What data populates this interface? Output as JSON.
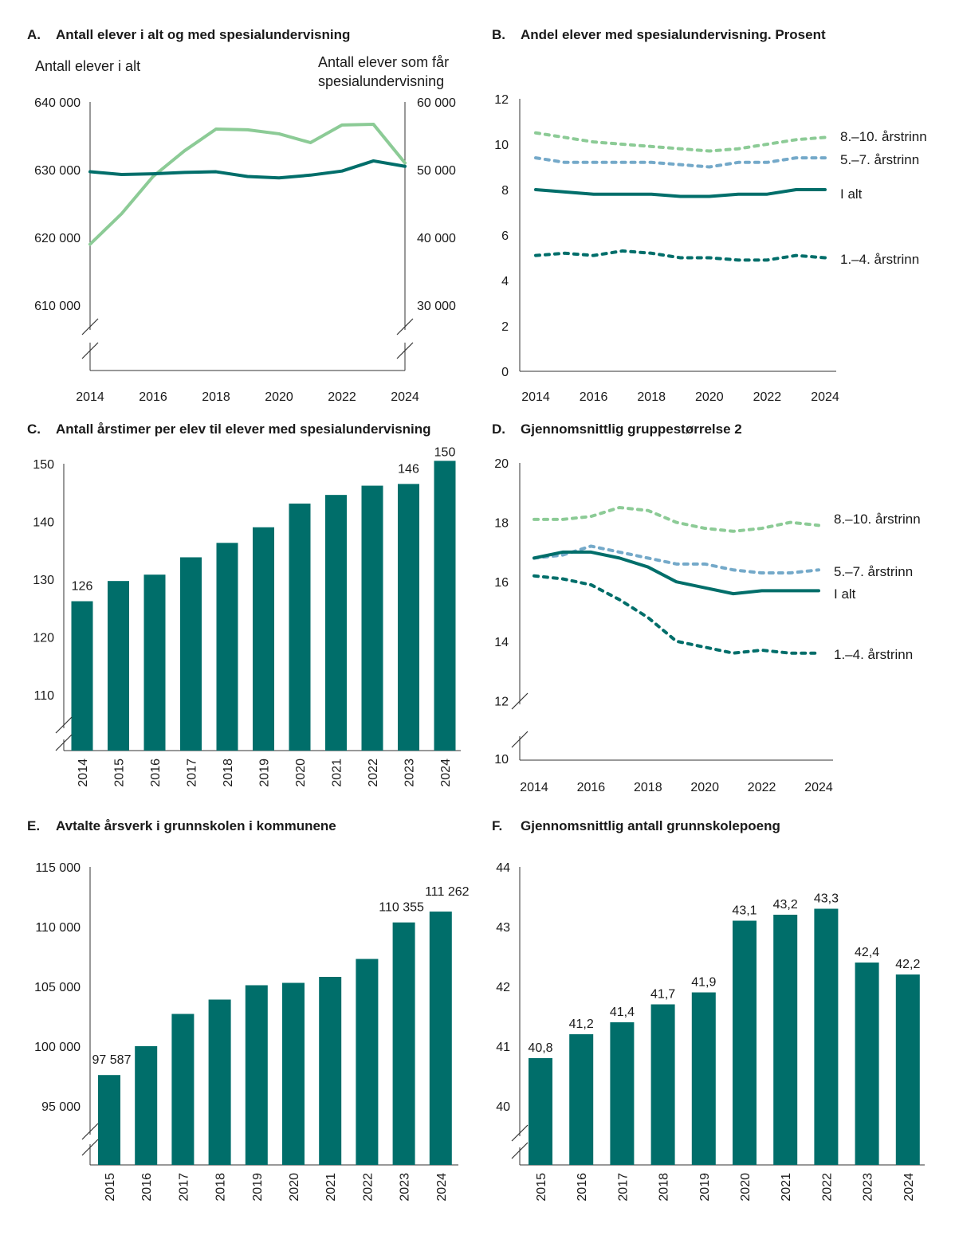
{
  "colors": {
    "dark_teal": "#006e6a",
    "light_green": "#8ccb96",
    "light_blue": "#74a9c9",
    "axis": "#333333"
  },
  "chart_data": [
    {
      "id": "A",
      "type": "line",
      "letter": "A.",
      "title": "Antall elever i alt og med spesialundervisning",
      "x": [
        2014,
        2015,
        2016,
        2017,
        2018,
        2019,
        2020,
        2021,
        2022,
        2023,
        2024
      ],
      "x_ticks": [
        "2014",
        "2016",
        "2018",
        "2020",
        "2022",
        "2024"
      ],
      "y_left_ticks": [
        "610 000",
        "620 000",
        "630 000",
        "640 000"
      ],
      "y_right_ticks": [
        "30 000",
        "40 000",
        "50 000",
        "60 000"
      ],
      "ylim_left": [
        610000,
        640000
      ],
      "ylim_right": [
        30000,
        60000
      ],
      "series": [
        {
          "name": "Antall elever i alt",
          "axis": "left",
          "color": "#8ccb96",
          "label_lines": [
            "Antall elever i alt"
          ],
          "values": [
            619000,
            623500,
            629000,
            632800,
            636000,
            635900,
            635300,
            634000,
            636600,
            636700,
            631000
          ]
        },
        {
          "name": "Antall elever som får spesialundervisning",
          "axis": "right",
          "color": "#006e6a",
          "label_lines": [
            "Antall elever som får",
            "spesialundervisning"
          ],
          "values": [
            49700,
            49300,
            49400,
            49600,
            49700,
            49000,
            48800,
            49200,
            49800,
            51300,
            50500
          ]
        }
      ]
    },
    {
      "id": "B",
      "type": "line",
      "letter": "B.",
      "title": "Andel elever med spesialundervisning. Prosent",
      "x": [
        2014,
        2015,
        2016,
        2017,
        2018,
        2019,
        2020,
        2021,
        2022,
        2023,
        2024
      ],
      "x_ticks": [
        "2014",
        "2016",
        "2018",
        "2020",
        "2022",
        "2024"
      ],
      "y_ticks": [
        "0",
        "2",
        "4",
        "6",
        "8",
        "10",
        "12"
      ],
      "ylim": [
        0,
        12
      ],
      "series": [
        {
          "name": "8.–10. årstrinn",
          "color": "#8ccb96",
          "dashed": true,
          "values": [
            10.5,
            10.3,
            10.1,
            10.0,
            9.9,
            9.8,
            9.7,
            9.8,
            10.0,
            10.2,
            10.3
          ]
        },
        {
          "name": "5.–7. årstrinn",
          "color": "#74a9c9",
          "dashed": true,
          "values": [
            9.4,
            9.2,
            9.2,
            9.2,
            9.2,
            9.1,
            9.0,
            9.2,
            9.2,
            9.4,
            9.4
          ]
        },
        {
          "name": "I alt",
          "color": "#006e6a",
          "dashed": false,
          "values": [
            8.0,
            7.9,
            7.8,
            7.8,
            7.8,
            7.7,
            7.7,
            7.8,
            7.8,
            8.0,
            8.0
          ]
        },
        {
          "name": "1.–4. årstrinn",
          "color": "#006e6a",
          "dashed": true,
          "values": [
            5.1,
            5.2,
            5.1,
            5.3,
            5.2,
            5.0,
            5.0,
            4.9,
            4.9,
            5.1,
            5.0
          ]
        }
      ]
    },
    {
      "id": "C",
      "type": "bar",
      "letter": "C.",
      "title": "Antall årstimer per elev til elever med spesialundervisning",
      "categories": [
        "2014",
        "2015",
        "2016",
        "2017",
        "2018",
        "2019",
        "2020",
        "2021",
        "2022",
        "2023",
        "2024"
      ],
      "values": [
        126.2,
        129.7,
        130.8,
        133.8,
        136.3,
        139.0,
        143.1,
        144.6,
        146.2,
        146.5,
        150.5
      ],
      "data_labels": {
        "0": "126",
        "9": "146",
        "10": "150"
      },
      "y_ticks": [
        "110",
        "120",
        "130",
        "140",
        "150"
      ],
      "ylim": [
        100,
        150
      ]
    },
    {
      "id": "D",
      "type": "line",
      "letter": "D.",
      "title": "Gjennomsnittlig gruppestørrelse 2",
      "x": [
        2014,
        2015,
        2016,
        2017,
        2018,
        2019,
        2020,
        2021,
        2022,
        2023,
        2024
      ],
      "x_ticks": [
        "2014",
        "2016",
        "2018",
        "2020",
        "2022",
        "2024"
      ],
      "y_ticks": [
        "10",
        "12",
        "14",
        "16",
        "18",
        "20"
      ],
      "ylim": [
        10,
        20
      ],
      "series": [
        {
          "name": "8.–10. årstrinn",
          "color": "#8ccb96",
          "dashed": true,
          "values": [
            18.1,
            18.1,
            18.2,
            18.5,
            18.4,
            18.0,
            17.8,
            17.7,
            17.8,
            18.0,
            17.9
          ]
        },
        {
          "name": "5.–7. årstrinn",
          "color": "#74a9c9",
          "dashed": true,
          "values": [
            16.8,
            16.9,
            17.2,
            17.0,
            16.8,
            16.6,
            16.6,
            16.4,
            16.3,
            16.3,
            16.4
          ]
        },
        {
          "name": "I alt",
          "color": "#006e6a",
          "dashed": false,
          "values": [
            16.8,
            17.0,
            17.0,
            16.8,
            16.5,
            16.0,
            15.8,
            15.6,
            15.7,
            15.7,
            15.7
          ]
        },
        {
          "name": "1.–4. årstrinn",
          "color": "#006e6a",
          "dashed": true,
          "values": [
            16.2,
            16.1,
            15.9,
            15.4,
            14.8,
            14.0,
            13.8,
            13.6,
            13.7,
            13.6,
            13.6
          ]
        }
      ]
    },
    {
      "id": "E",
      "type": "bar",
      "letter": "E.",
      "title": "Avtalte årsverk i grunnskolen i kommunene",
      "categories": [
        "2015",
        "2016",
        "2017",
        "2018",
        "2019",
        "2020",
        "2021",
        "2022",
        "2023",
        "2024"
      ],
      "values": [
        97587,
        100000,
        102700,
        103900,
        105100,
        105300,
        105800,
        107300,
        110355,
        111262
      ],
      "data_labels": {
        "0": "97 587",
        "8": "110 355",
        "9": "111 262"
      },
      "y_ticks": [
        "95 000",
        "100 000",
        "105 000",
        "110 000",
        "115 000"
      ],
      "ylim": [
        90000,
        115000
      ]
    },
    {
      "id": "F",
      "type": "bar",
      "letter": "F.",
      "title": "Gjennomsnittlig antall grunnskolepoeng",
      "categories": [
        "2015",
        "2016",
        "2017",
        "2018",
        "2019",
        "2020",
        "2021",
        "2022",
        "2023",
        "2024"
      ],
      "values": [
        40.8,
        41.2,
        41.4,
        41.7,
        41.9,
        43.1,
        43.2,
        43.3,
        42.4,
        42.2
      ],
      "data_labels": {
        "0": "40,8",
        "1": "41,2",
        "2": "41,4",
        "3": "41,7",
        "4": "41,9",
        "5": "43,1",
        "6": "43,2",
        "7": "43,3",
        "8": "42,4",
        "9": "42,2"
      },
      "y_ticks": [
        "40",
        "41",
        "42",
        "43",
        "44"
      ],
      "ylim": [
        39.5,
        44
      ]
    }
  ]
}
